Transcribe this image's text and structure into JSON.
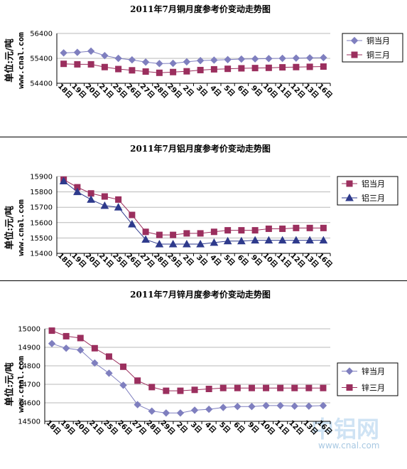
{
  "watermark": {
    "logo": "中铝网",
    "url": "www.cnal.com"
  },
  "chart_data": [
    {
      "type": "line",
      "title": "2011年7月铜月度参考价变动走势图",
      "ylabel": "单位:元/吨",
      "site": "www.cnal.com",
      "ylim": [
        54400,
        56400
      ],
      "yticks": [
        54400,
        55400,
        56400
      ],
      "categories": [
        "18日",
        "19日",
        "20日",
        "21日",
        "25日",
        "26日",
        "27日",
        "28日",
        "29日",
        "2日",
        "3日",
        "4日",
        "5日",
        "6日",
        "9日",
        "10日",
        "11日",
        "12日",
        "13日",
        "16日"
      ],
      "legend": "right",
      "series": [
        {
          "name": "铜当月",
          "marker": "diamond",
          "color": "#7f7fbf",
          "values": [
            55620,
            55640,
            55690,
            55510,
            55400,
            55340,
            55250,
            55190,
            55200,
            55260,
            55310,
            55330,
            55350,
            55370,
            55380,
            55390,
            55400,
            55410,
            55420,
            55430
          ]
        },
        {
          "name": "铜三月",
          "marker": "square",
          "color": "#9b2f5e",
          "values": [
            55180,
            55160,
            55160,
            55050,
            54970,
            54920,
            54870,
            54820,
            54850,
            54880,
            54930,
            54960,
            54980,
            55000,
            55010,
            55020,
            55040,
            55050,
            55060,
            55070
          ]
        }
      ]
    },
    {
      "type": "line",
      "title": "2011年7月铝月度参考价变动走势图",
      "ylabel": "单位:元/吨",
      "site": "www.cnal.com",
      "ylim": [
        15400,
        15900
      ],
      "yticks": [
        15400,
        15500,
        15600,
        15700,
        15800,
        15900
      ],
      "categories": [
        "18日",
        "19日",
        "20日",
        "21日",
        "25日",
        "26日",
        "27日",
        "28日",
        "29日",
        "2日",
        "3日",
        "4日",
        "5日",
        "6日",
        "9日",
        "10日",
        "11日",
        "12日",
        "13日",
        "16日"
      ],
      "legend": "right",
      "series": [
        {
          "name": "铝当月",
          "marker": "square",
          "color": "#9b2f5e",
          "values": [
            15880,
            15830,
            15790,
            15770,
            15750,
            15650,
            15540,
            15520,
            15520,
            15530,
            15530,
            15540,
            15550,
            15550,
            15550,
            15560,
            15560,
            15565,
            15565,
            15565
          ]
        },
        {
          "name": "铝三月",
          "marker": "triangle",
          "color": "#2e3a8c",
          "values": [
            15870,
            15800,
            15750,
            15710,
            15700,
            15590,
            15490,
            15460,
            15460,
            15460,
            15460,
            15470,
            15480,
            15480,
            15485,
            15485,
            15485,
            15485,
            15485,
            15485
          ]
        }
      ]
    },
    {
      "type": "line",
      "title": "2011年7月锌月度参考价变动走势图",
      "ylabel": "单位:元/吨",
      "site": "www.cnal.com",
      "ylim": [
        14500,
        15000
      ],
      "yticks": [
        14500,
        14600,
        14700,
        14800,
        14900,
        15000
      ],
      "categories": [
        "18日",
        "19日",
        "20日",
        "21日",
        "25日",
        "26日",
        "27日",
        "28日",
        "29日",
        "2日",
        "3日",
        "4日",
        "5日",
        "6日",
        "9日",
        "10日",
        "11日",
        "12日",
        "13日",
        "16日"
      ],
      "legend": "right",
      "series": [
        {
          "name": "锌当月",
          "marker": "diamond",
          "color": "#7f7fbf",
          "values": [
            14920,
            14895,
            14885,
            14815,
            14760,
            14695,
            14590,
            14555,
            14545,
            14545,
            14560,
            14565,
            14575,
            14580,
            14580,
            14585,
            14585,
            14582,
            14582,
            14585
          ]
        },
        {
          "name": "锌三月",
          "marker": "square",
          "color": "#9b2f5e",
          "values": [
            14990,
            14960,
            14950,
            14895,
            14850,
            14795,
            14720,
            14685,
            14665,
            14665,
            14670,
            14675,
            14680,
            14680,
            14680,
            14680,
            14680,
            14680,
            14680,
            14680
          ]
        }
      ]
    }
  ]
}
